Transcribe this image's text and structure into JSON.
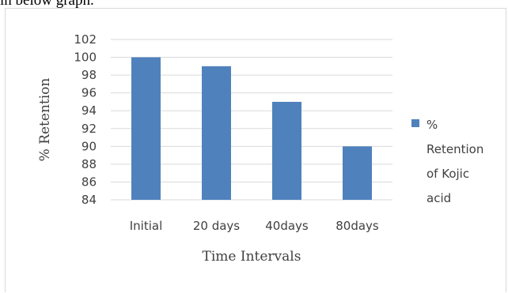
{
  "page": {
    "caption_fragment": "in below graph."
  },
  "chart_data": {
    "type": "bar",
    "categories": [
      "Initial",
      "20 days",
      "40days",
      "80days"
    ],
    "series": [
      {
        "name": "% Retention of Kojic acid",
        "values": [
          100,
          99,
          95,
          90
        ],
        "color": "#4f81bd"
      }
    ],
    "xlabel": "Time Intervals",
    "ylabel": "% Retention",
    "ylim": [
      84,
      102
    ],
    "ytick_step": 2,
    "yticks": [
      "84",
      "86",
      "88",
      "90",
      "92",
      "94",
      "96",
      "98",
      "100",
      "102"
    ],
    "grid": true,
    "legend": {
      "position": "right",
      "lines": [
        "%",
        "Retention",
        "of Kojic",
        "acid"
      ]
    }
  }
}
